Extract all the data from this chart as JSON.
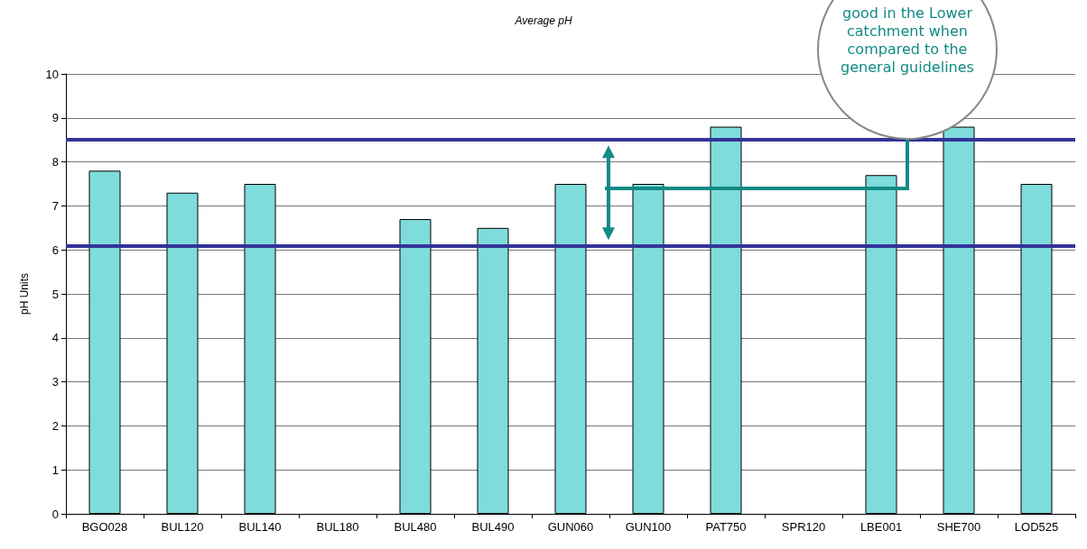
{
  "chart_data": {
    "type": "bar",
    "title": "Average pH",
    "ylabel": "pH Units",
    "categories": [
      "BGO028",
      "BUL120",
      "BUL140",
      "BUL180",
      "BUL480",
      "BUL490",
      "GUN060",
      "GUN100",
      "PAT750",
      "SPR120",
      "LBE001",
      "SHE700",
      "LOD525"
    ],
    "values": [
      7.8,
      7.3,
      7.5,
      null,
      6.7,
      6.5,
      7.5,
      7.5,
      8.8,
      null,
      7.7,
      8.8,
      7.5
    ],
    "color": "#7fdcdc",
    "ylim": [
      0,
      10
    ],
    "yticks": [
      0,
      1,
      2,
      3,
      4,
      5,
      6,
      7,
      8,
      9,
      10
    ],
    "grid": "y",
    "ref_lines": [
      {
        "axis": "y",
        "value": 8.5,
        "label": null,
        "color": "#333399"
      },
      {
        "axis": "y",
        "value": 6.1,
        "label": null,
        "color": "#333399"
      }
    ],
    "annotations": [
      "good in the Lower catchment when compared to the general guidelines"
    ]
  }
}
